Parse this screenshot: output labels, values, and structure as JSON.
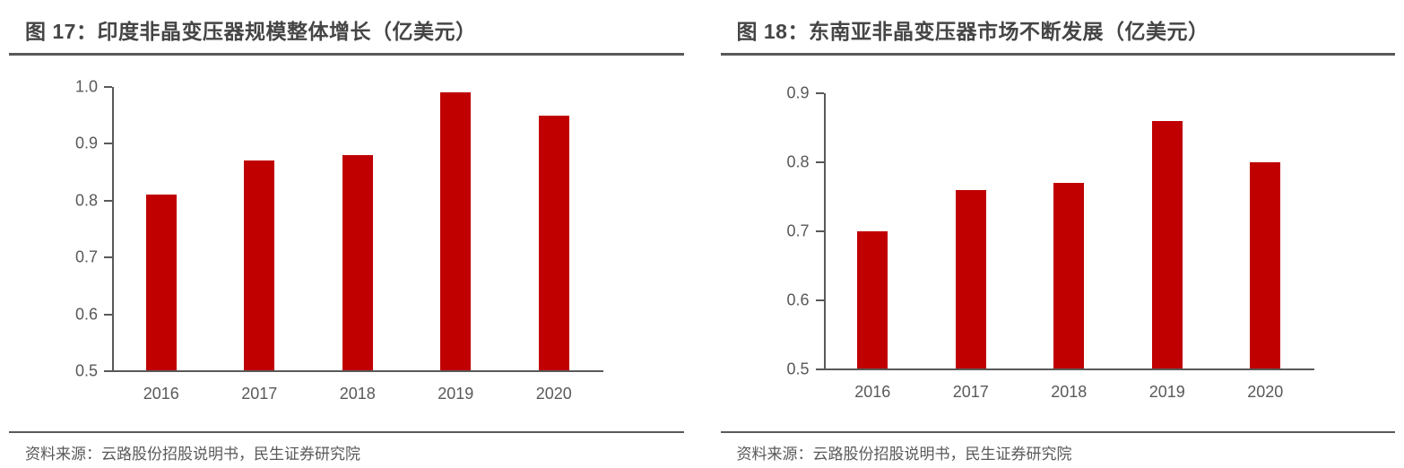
{
  "colors": {
    "bar": "#c00000",
    "axis": "#595959",
    "title_text": "#454545",
    "label_text": "#595959"
  },
  "panels": [
    {
      "title": "图 17：印度非晶变压器规模整体增长（亿美元）",
      "source": "资料来源：云路股份招股说明书，民生证券研究院"
    },
    {
      "title": "图 18：东南亚非晶变压器市场不断发展（亿美元）",
      "source": "资料来源：云路股份招股说明书，民生证券研究院"
    }
  ],
  "chart_data": [
    {
      "type": "bar",
      "title": "图 17：印度非晶变压器规模整体增长（亿美元）",
      "categories": [
        "2016",
        "2017",
        "2018",
        "2019",
        "2020"
      ],
      "values": [
        0.81,
        0.87,
        0.88,
        0.99,
        0.95
      ],
      "xlabel": "",
      "ylabel": "",
      "ylim": [
        0.5,
        1.0
      ],
      "yticks": [
        0.5,
        0.6,
        0.7,
        0.8,
        0.9,
        1.0
      ],
      "grid": false,
      "legend": "none",
      "bar_color": "#c00000",
      "source_note": "资料来源：云路股份招股说明书，民生证券研究院"
    },
    {
      "type": "bar",
      "title": "图 18：东南亚非晶变压器市场不断发展（亿美元）",
      "categories": [
        "2016",
        "2017",
        "2018",
        "2019",
        "2020"
      ],
      "values": [
        0.7,
        0.76,
        0.77,
        0.86,
        0.8
      ],
      "xlabel": "",
      "ylabel": "",
      "ylim": [
        0.5,
        0.9
      ],
      "yticks": [
        0.5,
        0.6,
        0.7,
        0.8,
        0.9
      ],
      "grid": false,
      "legend": "none",
      "bar_color": "#c00000",
      "source_note": "资料来源：云路股份招股说明书，民生证券研究院"
    }
  ]
}
